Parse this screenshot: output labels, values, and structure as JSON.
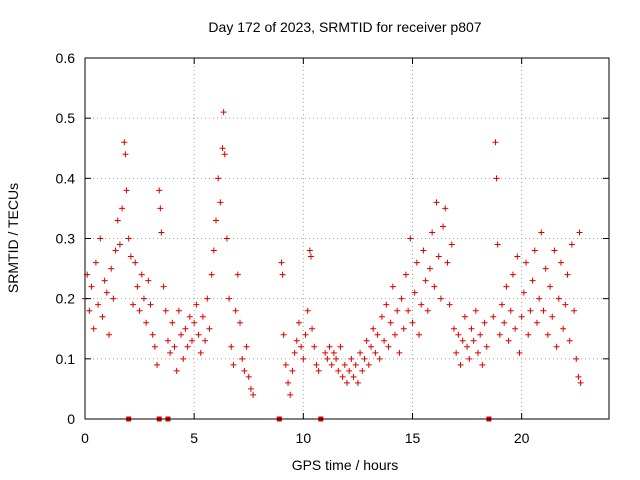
{
  "chart_data": {
    "type": "scatter",
    "title": "Day 172 of 2023, SRMTID for receiver p807",
    "xlabel": "GPS time / hours",
    "ylabel": "SRMTID / TECUs",
    "xlim": [
      0,
      24
    ],
    "ylim": [
      0,
      0.6
    ],
    "xticks": [
      0,
      5,
      10,
      15,
      20
    ],
    "yticks": [
      0,
      0.1,
      0.2,
      0.3,
      0.4,
      0.5,
      0.6
    ],
    "grid": true,
    "marker": "+",
    "color": "#e00000",
    "gap_markers_x": [
      2.0,
      3.4,
      3.8,
      8.9,
      10.8,
      18.5
    ],
    "series": [
      {
        "name": "SRMTID",
        "points": [
          [
            0.0,
            0.2
          ],
          [
            0.1,
            0.24
          ],
          [
            0.2,
            0.18
          ],
          [
            0.3,
            0.22
          ],
          [
            0.4,
            0.15
          ],
          [
            0.5,
            0.26
          ],
          [
            0.6,
            0.19
          ],
          [
            0.7,
            0.3
          ],
          [
            0.8,
            0.17
          ],
          [
            0.9,
            0.23
          ],
          [
            1.0,
            0.21
          ],
          [
            1.1,
            0.14
          ],
          [
            1.2,
            0.25
          ],
          [
            1.3,
            0.2
          ],
          [
            1.4,
            0.28
          ],
          [
            1.5,
            0.33
          ],
          [
            1.6,
            0.29
          ],
          [
            1.7,
            0.35
          ],
          [
            1.8,
            0.46
          ],
          [
            1.85,
            0.44
          ],
          [
            1.9,
            0.38
          ],
          [
            2.0,
            0.3
          ],
          [
            2.1,
            0.27
          ],
          [
            2.2,
            0.19
          ],
          [
            2.3,
            0.26
          ],
          [
            2.4,
            0.22
          ],
          [
            2.5,
            0.18
          ],
          [
            2.6,
            0.24
          ],
          [
            2.7,
            0.2
          ],
          [
            2.8,
            0.16
          ],
          [
            2.9,
            0.23
          ],
          [
            3.0,
            0.19
          ],
          [
            3.1,
            0.14
          ],
          [
            3.2,
            0.12
          ],
          [
            3.3,
            0.09
          ],
          [
            3.4,
            0.38
          ],
          [
            3.45,
            0.35
          ],
          [
            3.5,
            0.31
          ],
          [
            3.6,
            0.22
          ],
          [
            3.7,
            0.18
          ],
          [
            3.8,
            0.13
          ],
          [
            3.9,
            0.11
          ],
          [
            4.0,
            0.16
          ],
          [
            4.1,
            0.12
          ],
          [
            4.2,
            0.08
          ],
          [
            4.3,
            0.18
          ],
          [
            4.4,
            0.14
          ],
          [
            4.5,
            0.1
          ],
          [
            4.6,
            0.15
          ],
          [
            4.7,
            0.12
          ],
          [
            4.8,
            0.17
          ],
          [
            4.9,
            0.13
          ],
          [
            5.0,
            0.16
          ],
          [
            5.1,
            0.19
          ],
          [
            5.2,
            0.14
          ],
          [
            5.3,
            0.11
          ],
          [
            5.4,
            0.17
          ],
          [
            5.5,
            0.13
          ],
          [
            5.6,
            0.2
          ],
          [
            5.7,
            0.15
          ],
          [
            5.8,
            0.24
          ],
          [
            5.9,
            0.28
          ],
          [
            6.0,
            0.33
          ],
          [
            6.1,
            0.4
          ],
          [
            6.2,
            0.36
          ],
          [
            6.3,
            0.45
          ],
          [
            6.35,
            0.51
          ],
          [
            6.4,
            0.44
          ],
          [
            6.5,
            0.3
          ],
          [
            6.6,
            0.2
          ],
          [
            6.7,
            0.12
          ],
          [
            6.8,
            0.09
          ],
          [
            6.9,
            0.18
          ],
          [
            7.0,
            0.24
          ],
          [
            7.1,
            0.16
          ],
          [
            7.2,
            0.1
          ],
          [
            7.3,
            0.08
          ],
          [
            7.4,
            0.12
          ],
          [
            7.5,
            0.07
          ],
          [
            7.6,
            0.05
          ],
          [
            7.7,
            0.04
          ],
          [
            9.0,
            0.26
          ],
          [
            9.05,
            0.24
          ],
          [
            9.1,
            0.14
          ],
          [
            9.2,
            0.09
          ],
          [
            9.3,
            0.06
          ],
          [
            9.4,
            0.04
          ],
          [
            9.5,
            0.08
          ],
          [
            9.6,
            0.11
          ],
          [
            9.7,
            0.13
          ],
          [
            9.8,
            0.16
          ],
          [
            9.9,
            0.12
          ],
          [
            10.0,
            0.1
          ],
          [
            10.1,
            0.14
          ],
          [
            10.2,
            0.18
          ],
          [
            10.3,
            0.28
          ],
          [
            10.35,
            0.27
          ],
          [
            10.4,
            0.15
          ],
          [
            10.5,
            0.12
          ],
          [
            10.6,
            0.09
          ],
          [
            10.7,
            0.08
          ],
          [
            11.0,
            0.11
          ],
          [
            11.1,
            0.1
          ],
          [
            11.2,
            0.12
          ],
          [
            11.3,
            0.09
          ],
          [
            11.4,
            0.11
          ],
          [
            11.5,
            0.1
          ],
          [
            11.6,
            0.08
          ],
          [
            11.7,
            0.12
          ],
          [
            11.8,
            0.07
          ],
          [
            11.9,
            0.09
          ],
          [
            12.0,
            0.06
          ],
          [
            12.1,
            0.08
          ],
          [
            12.2,
            0.1
          ],
          [
            12.3,
            0.07
          ],
          [
            12.4,
            0.09
          ],
          [
            12.5,
            0.06
          ],
          [
            12.6,
            0.11
          ],
          [
            12.7,
            0.08
          ],
          [
            12.8,
            0.1
          ],
          [
            12.9,
            0.13
          ],
          [
            13.0,
            0.09
          ],
          [
            13.1,
            0.12
          ],
          [
            13.2,
            0.15
          ],
          [
            13.3,
            0.11
          ],
          [
            13.4,
            0.14
          ],
          [
            13.5,
            0.1
          ],
          [
            13.6,
            0.17
          ],
          [
            13.7,
            0.13
          ],
          [
            13.8,
            0.19
          ],
          [
            13.9,
            0.12
          ],
          [
            14.0,
            0.16
          ],
          [
            14.1,
            0.22
          ],
          [
            14.2,
            0.14
          ],
          [
            14.3,
            0.18
          ],
          [
            14.4,
            0.11
          ],
          [
            14.5,
            0.2
          ],
          [
            14.6,
            0.15
          ],
          [
            14.7,
            0.24
          ],
          [
            14.8,
            0.18
          ],
          [
            14.9,
            0.3
          ],
          [
            15.0,
            0.16
          ],
          [
            15.1,
            0.21
          ],
          [
            15.2,
            0.26
          ],
          [
            15.3,
            0.14
          ],
          [
            15.4,
            0.19
          ],
          [
            15.5,
            0.28
          ],
          [
            15.6,
            0.23
          ],
          [
            15.7,
            0.18
          ],
          [
            15.8,
            0.25
          ],
          [
            15.9,
            0.31
          ],
          [
            16.0,
            0.22
          ],
          [
            16.1,
            0.36
          ],
          [
            16.2,
            0.27
          ],
          [
            16.3,
            0.2
          ],
          [
            16.4,
            0.32
          ],
          [
            16.5,
            0.35
          ],
          [
            16.6,
            0.26
          ],
          [
            16.7,
            0.19
          ],
          [
            16.8,
            0.29
          ],
          [
            16.9,
            0.15
          ],
          [
            17.0,
            0.11
          ],
          [
            17.1,
            0.14
          ],
          [
            17.2,
            0.09
          ],
          [
            17.3,
            0.13
          ],
          [
            17.4,
            0.17
          ],
          [
            17.5,
            0.12
          ],
          [
            17.6,
            0.1
          ],
          [
            17.7,
            0.15
          ],
          [
            17.8,
            0.13
          ],
          [
            17.9,
            0.18
          ],
          [
            18.0,
            0.11
          ],
          [
            18.1,
            0.14
          ],
          [
            18.2,
            0.09
          ],
          [
            18.3,
            0.16
          ],
          [
            18.4,
            0.12
          ],
          [
            18.7,
            0.17
          ],
          [
            18.8,
            0.46
          ],
          [
            18.85,
            0.4
          ],
          [
            18.9,
            0.29
          ],
          [
            19.0,
            0.14
          ],
          [
            19.1,
            0.19
          ],
          [
            19.2,
            0.16
          ],
          [
            19.3,
            0.22
          ],
          [
            19.4,
            0.13
          ],
          [
            19.5,
            0.18
          ],
          [
            19.6,
            0.24
          ],
          [
            19.7,
            0.15
          ],
          [
            19.8,
            0.27
          ],
          [
            19.9,
            0.11
          ],
          [
            20.0,
            0.17
          ],
          [
            20.1,
            0.21
          ],
          [
            20.2,
            0.26
          ],
          [
            20.3,
            0.14
          ],
          [
            20.4,
            0.18
          ],
          [
            20.5,
            0.23
          ],
          [
            20.6,
            0.28
          ],
          [
            20.7,
            0.16
          ],
          [
            20.8,
            0.2
          ],
          [
            20.9,
            0.31
          ],
          [
            21.0,
            0.18
          ],
          [
            21.1,
            0.25
          ],
          [
            21.2,
            0.14
          ],
          [
            21.3,
            0.22
          ],
          [
            21.4,
            0.17
          ],
          [
            21.5,
            0.28
          ],
          [
            21.6,
            0.12
          ],
          [
            21.7,
            0.2
          ],
          [
            21.8,
            0.26
          ],
          [
            21.9,
            0.15
          ],
          [
            22.0,
            0.19
          ],
          [
            22.1,
            0.24
          ],
          [
            22.2,
            0.13
          ],
          [
            22.3,
            0.29
          ],
          [
            22.4,
            0.18
          ],
          [
            22.5,
            0.1
          ],
          [
            22.6,
            0.07
          ],
          [
            22.65,
            0.31
          ],
          [
            22.7,
            0.06
          ]
        ]
      }
    ]
  }
}
